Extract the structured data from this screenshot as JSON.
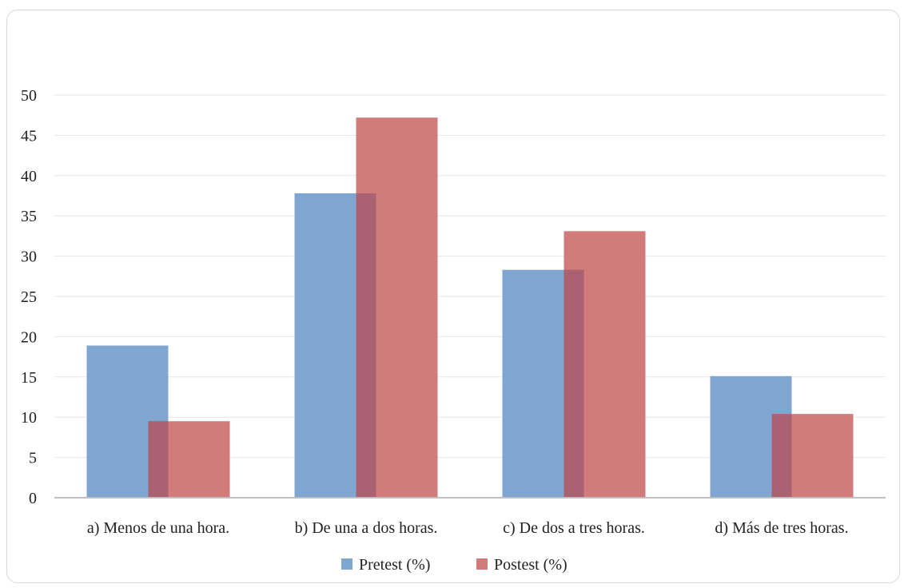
{
  "chart_data": {
    "type": "bar",
    "categories": [
      "a) Menos de una hora.",
      "b) De una a dos horas.",
      "c) De dos a tres horas.",
      "d) Más de tres horas."
    ],
    "series": [
      {
        "name": "Pretest (%)",
        "values": [
          18.9,
          37.8,
          28.3,
          15.1
        ],
        "color": "#7fa6d0"
      },
      {
        "name": "Postest (%)",
        "values": [
          9.5,
          47.2,
          33.1,
          10.4
        ],
        "color": "#d27b7b"
      }
    ],
    "overlap_color": "#aa6273",
    "y_ticks": [
      0,
      5,
      10,
      15,
      20,
      25,
      30,
      35,
      40,
      45,
      50
    ],
    "ylim": [
      0,
      50
    ],
    "grid": true,
    "legend_position": "bottom",
    "title": "",
    "xlabel": "",
    "ylabel": ""
  }
}
